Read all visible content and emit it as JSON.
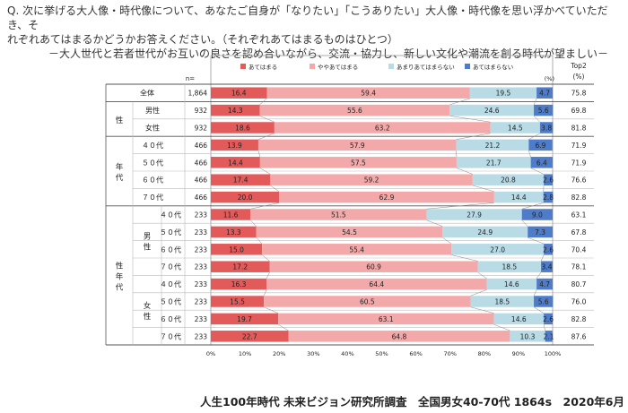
{
  "question": {
    "lines": [
      "Q. 次に挙げる大人像・時代像について、あなたご自身が「なりたい」「こうありたい」大人像・時代像を思い浮かべていただき、そ",
      "れぞれあてはまるかどうかお答えください。（それぞれあてはまるものはひとつ）"
    ],
    "subtitle": "－大人世代と若者世代がお互いの良さを認め合いながら、交流・協力し、新しい文化や潮流を創る時代が望ましい－"
  },
  "header": {
    "n_label": "n=",
    "percent_unit": "(%)",
    "top2_label": "Top2",
    "top2_unit": "(%)"
  },
  "row_groups": {
    "sex": "性",
    "age": "年代",
    "sexage": "性年代",
    "male": "男性",
    "female": "女性"
  },
  "footer": "人生100年時代 未来ビジョン研究所調査　全国男女40-70代 1864s　2020年6月",
  "chart_data": {
    "type": "bar",
    "stacked": true,
    "orientation": "horizontal",
    "legend_position": "top",
    "x_ticks": [
      "0%",
      "10%",
      "20%",
      "30%",
      "40%",
      "50%",
      "60%",
      "70%",
      "80%",
      "90%",
      "100%"
    ],
    "xlim": [
      0,
      100
    ],
    "series": [
      {
        "name": "あてはまる",
        "color": "#e35a5a"
      },
      {
        "name": "ややあてはまる",
        "color": "#f3a9a9"
      },
      {
        "name": "あまりあてはまらない",
        "color": "#b8dbe6"
      },
      {
        "name": "あてはまらない",
        "color": "#4f7cc9"
      }
    ],
    "rows": [
      {
        "label": "全体",
        "n": "1,864",
        "values": [
          16.4,
          59.4,
          19.5,
          4.7
        ],
        "top2": "75.8"
      },
      {
        "label": "男性",
        "n": "932",
        "values": [
          14.3,
          55.6,
          24.6,
          5.6
        ],
        "top2": "69.8"
      },
      {
        "label": "女性",
        "n": "932",
        "values": [
          18.6,
          63.2,
          14.5,
          3.8
        ],
        "top2": "81.8"
      },
      {
        "label": "４０代",
        "n": "466",
        "values": [
          13.9,
          57.9,
          21.2,
          6.9
        ],
        "top2": "71.9"
      },
      {
        "label": "５０代",
        "n": "466",
        "values": [
          14.4,
          57.5,
          21.7,
          6.4
        ],
        "top2": "71.9"
      },
      {
        "label": "６０代",
        "n": "466",
        "values": [
          17.4,
          59.2,
          20.8,
          2.6
        ],
        "top2": "76.6"
      },
      {
        "label": "７０代",
        "n": "466",
        "values": [
          20.0,
          62.9,
          14.4,
          2.8
        ],
        "top2": "82.8"
      },
      {
        "label": "４０代",
        "n": "233",
        "values": [
          11.6,
          51.5,
          27.9,
          9.0
        ],
        "top2": "63.1"
      },
      {
        "label": "５０代",
        "n": "233",
        "values": [
          13.3,
          54.5,
          24.9,
          7.3
        ],
        "top2": "67.8"
      },
      {
        "label": "６０代",
        "n": "233",
        "values": [
          15.0,
          55.4,
          27.0,
          2.6
        ],
        "top2": "70.4"
      },
      {
        "label": "７０代",
        "n": "233",
        "values": [
          17.2,
          60.9,
          18.5,
          3.4
        ],
        "top2": "78.1"
      },
      {
        "label": "４０代",
        "n": "233",
        "values": [
          16.3,
          64.4,
          14.6,
          4.7
        ],
        "top2": "80.7"
      },
      {
        "label": "５０代",
        "n": "233",
        "values": [
          15.5,
          60.5,
          18.5,
          5.6
        ],
        "top2": "76.0"
      },
      {
        "label": "６０代",
        "n": "233",
        "values": [
          19.7,
          63.1,
          14.6,
          2.6
        ],
        "top2": "82.8"
      },
      {
        "label": "７０代",
        "n": "233",
        "values": [
          22.7,
          64.8,
          10.3,
          2.1
        ],
        "top2": "87.6"
      }
    ]
  }
}
